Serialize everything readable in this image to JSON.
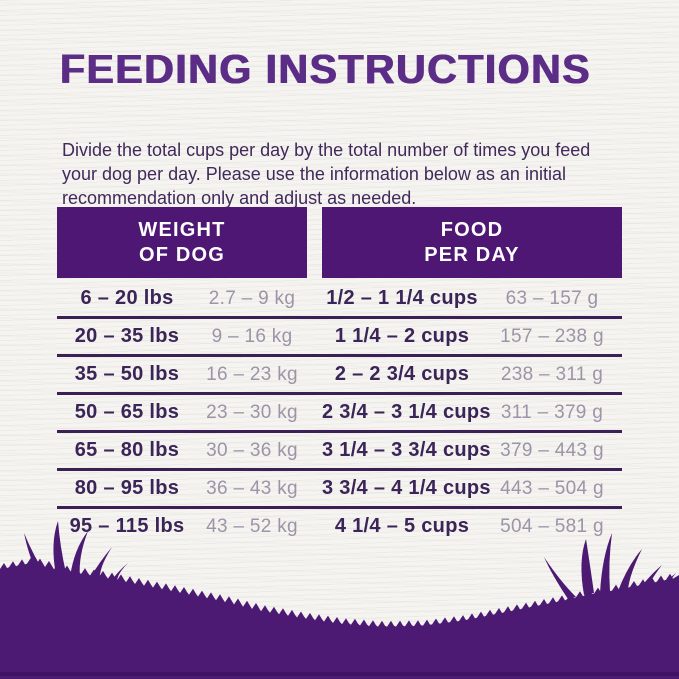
{
  "page": {
    "title": "FEEDING INSTRUCTIONS",
    "intro": "Divide the total cups per day by the total number of times you feed your dog per day. Please use the information below as an initial recommendation only and adjust as needed."
  },
  "table": {
    "headers": {
      "weight": {
        "line1": "WEIGHT",
        "line2": "OF DOG"
      },
      "food": {
        "line1": "FOOD",
        "line2": "PER DAY"
      }
    },
    "rows": [
      {
        "lbs": "6 – 20 lbs",
        "kg": "2.7 – 9 kg",
        "cups": "1/2 – 1 1/4 cups",
        "grams": "63 – 157 g"
      },
      {
        "lbs": "20 – 35 lbs",
        "kg": "9 – 16 kg",
        "cups": "1 1/4 – 2 cups",
        "grams": "157 – 238 g"
      },
      {
        "lbs": "35 – 50 lbs",
        "kg": "16 – 23 kg",
        "cups": "2 – 2 3/4 cups",
        "grams": "238 – 311 g"
      },
      {
        "lbs": "50 – 65 lbs",
        "kg": "23 – 30 kg",
        "cups": "2 3/4 – 3 1/4 cups",
        "grams": "311 – 379 g"
      },
      {
        "lbs": "65 – 80 lbs",
        "kg": "30 – 36 kg",
        "cups": "3 1/4 – 3 3/4 cups",
        "grams": "379 – 443 g"
      },
      {
        "lbs": "80 – 95 lbs",
        "kg": "36 – 43 kg",
        "cups": "3 3/4 – 4 1/4 cups",
        "grams": "443 – 504 g"
      },
      {
        "lbs": "95 – 115 lbs",
        "kg": "43 – 52 kg",
        "cups": "4 1/4 – 5 cups",
        "grams": "504 – 581 g"
      }
    ]
  },
  "colors": {
    "title_purple": "#5b2d87",
    "header_purple": "#4d1773",
    "grass_purple": "#4c1a72",
    "grass_shadow": "#360e56",
    "separator": "#3a2055",
    "dark_text": "#3b2457",
    "light_text": "#9c94a7",
    "intro_text": "#41295a",
    "background": "#f5f4f1"
  }
}
